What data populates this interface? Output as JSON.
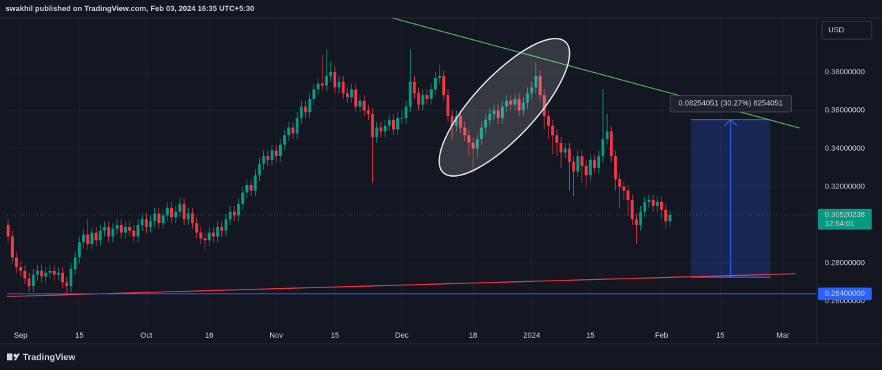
{
  "header": {
    "attribution": "swakhil published on TradingView.com, Feb 03, 2024 16:35 UTC+5:30",
    "currency": "USD",
    "brand": "TradingView"
  },
  "chart_data": {
    "type": "candlestick",
    "x": [
      -3,
      -2,
      -1,
      0,
      1,
      2,
      3,
      4,
      5,
      6,
      7,
      8,
      9,
      10,
      11,
      12,
      13,
      14,
      15,
      16,
      17,
      18,
      19,
      20,
      21,
      22,
      23,
      24,
      25,
      26,
      27,
      28,
      29,
      30,
      31,
      32,
      33,
      34,
      35,
      36,
      37,
      38,
      39,
      40,
      41,
      42,
      43,
      44,
      45,
      46,
      47,
      48,
      49,
      50,
      51,
      52,
      53,
      54,
      55,
      56,
      57,
      58,
      59,
      60,
      61,
      62,
      63,
      64,
      65,
      66,
      67,
      68,
      69,
      70,
      71,
      72,
      73,
      74,
      75,
      76,
      77,
      78,
      79,
      80,
      81,
      82,
      83,
      84,
      85,
      86,
      87,
      88,
      89,
      90,
      91,
      92,
      93,
      94,
      95,
      96,
      97,
      98,
      99,
      100,
      101,
      102,
      103,
      104,
      105,
      106,
      107,
      108,
      109,
      110,
      111,
      112,
      113,
      114,
      115,
      116,
      117,
      118,
      119,
      120,
      121,
      122,
      123,
      124,
      125,
      126,
      127,
      128,
      129,
      130,
      131,
      132,
      133,
      134,
      135,
      136,
      137,
      138,
      139,
      140,
      141,
      142,
      143,
      144,
      145,
      146,
      147,
      148,
      149,
      150,
      151,
      152,
      153,
      154,
      155
    ],
    "open": [
      0.3,
      0.294,
      0.283,
      0.278,
      0.276,
      0.272,
      0.268,
      0.274,
      0.276,
      0.273,
      0.275,
      0.276,
      0.274,
      0.275,
      0.27,
      0.268,
      0.277,
      0.283,
      0.291,
      0.295,
      0.29,
      0.296,
      0.292,
      0.297,
      0.299,
      0.294,
      0.298,
      0.3,
      0.296,
      0.299,
      0.297,
      0.294,
      0.3,
      0.303,
      0.299,
      0.302,
      0.306,
      0.301,
      0.305,
      0.309,
      0.304,
      0.307,
      0.311,
      0.303,
      0.306,
      0.301,
      0.296,
      0.293,
      0.292,
      0.296,
      0.294,
      0.299,
      0.297,
      0.303,
      0.307,
      0.305,
      0.311,
      0.317,
      0.321,
      0.318,
      0.326,
      0.332,
      0.336,
      0.334,
      0.339,
      0.336,
      0.342,
      0.347,
      0.351,
      0.348,
      0.356,
      0.362,
      0.359,
      0.366,
      0.371,
      0.374,
      0.373,
      0.378,
      0.38,
      0.372,
      0.375,
      0.369,
      0.367,
      0.371,
      0.362,
      0.365,
      0.36,
      0.358,
      0.346,
      0.351,
      0.349,
      0.352,
      0.355,
      0.35,
      0.356,
      0.356,
      0.362,
      0.375,
      0.369,
      0.363,
      0.368,
      0.366,
      0.371,
      0.377,
      0.378,
      0.368,
      0.357,
      0.352,
      0.357,
      0.351,
      0.347,
      0.343,
      0.34,
      0.345,
      0.351,
      0.355,
      0.358,
      0.36,
      0.356,
      0.362,
      0.365,
      0.363,
      0.366,
      0.36,
      0.364,
      0.369,
      0.372,
      0.378,
      0.368,
      0.357,
      0.352,
      0.347,
      0.343,
      0.338,
      0.34,
      0.333,
      0.328,
      0.336,
      0.331,
      0.326,
      0.334,
      0.33,
      0.336,
      0.345,
      0.349,
      0.336,
      0.324,
      0.32,
      0.318,
      0.313,
      0.303,
      0.3,
      0.307,
      0.312,
      0.313,
      0.31,
      0.312,
      0.308,
      0.302
    ],
    "high": [
      0.303,
      0.297,
      0.286,
      0.281,
      0.279,
      0.275,
      0.277,
      0.279,
      0.279,
      0.278,
      0.279,
      0.279,
      0.278,
      0.278,
      0.273,
      0.28,
      0.286,
      0.294,
      0.298,
      0.303,
      0.299,
      0.299,
      0.3,
      0.302,
      0.302,
      0.301,
      0.303,
      0.303,
      0.302,
      0.302,
      0.3,
      0.303,
      0.306,
      0.306,
      0.305,
      0.309,
      0.309,
      0.308,
      0.312,
      0.312,
      0.31,
      0.314,
      0.314,
      0.309,
      0.309,
      0.304,
      0.299,
      0.296,
      0.299,
      0.299,
      0.302,
      0.302,
      0.306,
      0.31,
      0.31,
      0.314,
      0.32,
      0.324,
      0.324,
      0.329,
      0.335,
      0.339,
      0.339,
      0.342,
      0.342,
      0.345,
      0.35,
      0.354,
      0.354,
      0.359,
      0.365,
      0.365,
      0.369,
      0.374,
      0.377,
      0.389,
      0.392,
      0.386,
      0.383,
      0.378,
      0.378,
      0.372,
      0.374,
      0.374,
      0.368,
      0.368,
      0.363,
      0.361,
      0.354,
      0.354,
      0.355,
      0.358,
      0.358,
      0.359,
      0.36,
      0.365,
      0.392,
      0.378,
      0.372,
      0.371,
      0.371,
      0.374,
      0.38,
      0.384,
      0.381,
      0.371,
      0.36,
      0.36,
      0.36,
      0.354,
      0.35,
      0.346,
      0.348,
      0.354,
      0.358,
      0.361,
      0.363,
      0.363,
      0.365,
      0.368,
      0.368,
      0.369,
      0.369,
      0.367,
      0.372,
      0.375,
      0.385,
      0.381,
      0.371,
      0.36,
      0.355,
      0.35,
      0.346,
      0.343,
      0.343,
      0.336,
      0.339,
      0.339,
      0.334,
      0.337,
      0.337,
      0.339,
      0.371,
      0.358,
      0.352,
      0.339,
      0.327,
      0.323,
      0.321,
      0.316,
      0.306,
      0.31,
      0.315,
      0.316,
      0.316,
      0.315,
      0.315,
      0.311,
      0.3075
    ],
    "low": [
      0.291,
      0.28,
      0.275,
      0.273,
      0.269,
      0.265,
      0.265,
      0.271,
      0.27,
      0.27,
      0.272,
      0.271,
      0.271,
      0.267,
      0.264,
      0.265,
      0.274,
      0.28,
      0.288,
      0.287,
      0.287,
      0.289,
      0.289,
      0.294,
      0.291,
      0.291,
      0.295,
      0.293,
      0.293,
      0.294,
      0.291,
      0.291,
      0.297,
      0.296,
      0.296,
      0.299,
      0.298,
      0.298,
      0.302,
      0.301,
      0.301,
      0.304,
      0.3,
      0.3,
      0.298,
      0.293,
      0.29,
      0.287,
      0.289,
      0.291,
      0.291,
      0.294,
      0.294,
      0.3,
      0.302,
      0.302,
      0.308,
      0.314,
      0.315,
      0.315,
      0.323,
      0.329,
      0.331,
      0.331,
      0.333,
      0.333,
      0.339,
      0.344,
      0.345,
      0.345,
      0.353,
      0.356,
      0.356,
      0.363,
      0.368,
      0.37,
      0.37,
      0.375,
      0.369,
      0.369,
      0.366,
      0.364,
      0.364,
      0.359,
      0.359,
      0.357,
      0.355,
      0.322,
      0.343,
      0.346,
      0.346,
      0.349,
      0.347,
      0.347,
      0.353,
      0.353,
      0.359,
      0.366,
      0.36,
      0.36,
      0.363,
      0.363,
      0.368,
      0.374,
      0.365,
      0.354,
      0.345,
      0.349,
      0.348,
      0.344,
      0.336,
      0.327,
      0.335,
      0.342,
      0.348,
      0.352,
      0.355,
      0.353,
      0.353,
      0.359,
      0.36,
      0.36,
      0.357,
      0.357,
      0.361,
      0.366,
      0.369,
      0.365,
      0.35,
      0.345,
      0.337,
      0.336,
      0.33,
      0.335,
      0.318,
      0.315,
      0.325,
      0.322,
      0.32,
      0.323,
      0.327,
      0.327,
      0.333,
      0.342,
      0.333,
      0.318,
      0.309,
      0.313,
      0.305,
      0.3,
      0.29,
      0.297,
      0.304,
      0.309,
      0.307,
      0.307,
      0.303,
      0.298,
      0.299
    ],
    "close": [
      0.294,
      0.283,
      0.278,
      0.276,
      0.272,
      0.268,
      0.274,
      0.276,
      0.273,
      0.275,
      0.276,
      0.274,
      0.275,
      0.27,
      0.268,
      0.277,
      0.283,
      0.291,
      0.295,
      0.29,
      0.296,
      0.292,
      0.297,
      0.299,
      0.294,
      0.298,
      0.3,
      0.296,
      0.299,
      0.297,
      0.294,
      0.3,
      0.303,
      0.299,
      0.302,
      0.306,
      0.301,
      0.305,
      0.309,
      0.304,
      0.307,
      0.311,
      0.303,
      0.306,
      0.301,
      0.296,
      0.293,
      0.292,
      0.296,
      0.294,
      0.299,
      0.297,
      0.303,
      0.307,
      0.305,
      0.311,
      0.317,
      0.321,
      0.318,
      0.326,
      0.332,
      0.336,
      0.334,
      0.339,
      0.336,
      0.342,
      0.347,
      0.351,
      0.348,
      0.356,
      0.362,
      0.359,
      0.366,
      0.371,
      0.374,
      0.373,
      0.378,
      0.38,
      0.372,
      0.375,
      0.369,
      0.367,
      0.371,
      0.362,
      0.365,
      0.36,
      0.358,
      0.346,
      0.351,
      0.349,
      0.352,
      0.355,
      0.35,
      0.356,
      0.356,
      0.362,
      0.375,
      0.369,
      0.363,
      0.368,
      0.366,
      0.371,
      0.377,
      0.378,
      0.368,
      0.357,
      0.352,
      0.357,
      0.351,
      0.347,
      0.343,
      0.34,
      0.345,
      0.351,
      0.355,
      0.358,
      0.36,
      0.356,
      0.362,
      0.365,
      0.363,
      0.366,
      0.36,
      0.364,
      0.369,
      0.372,
      0.378,
      0.368,
      0.357,
      0.352,
      0.347,
      0.343,
      0.338,
      0.34,
      0.333,
      0.328,
      0.336,
      0.331,
      0.326,
      0.334,
      0.33,
      0.336,
      0.345,
      0.349,
      0.336,
      0.324,
      0.32,
      0.318,
      0.313,
      0.303,
      0.3,
      0.307,
      0.312,
      0.313,
      0.31,
      0.312,
      0.308,
      0.302,
      0.30520238
    ],
    "up_color": "#089981",
    "down_color": "#f23645",
    "xlim": [
      -3.3,
      190
    ],
    "ylim": [
      0.2468,
      0.4084
    ],
    "xticks": [
      {
        "value": 0,
        "label": "Sep"
      },
      {
        "value": 14,
        "label": "15"
      },
      {
        "value": 30,
        "label": "Oct"
      },
      {
        "value": 45,
        "label": "16"
      },
      {
        "value": 61,
        "label": "Nov"
      },
      {
        "value": 75,
        "label": "15"
      },
      {
        "value": 91,
        "label": "Dec"
      },
      {
        "value": 108,
        "label": "18"
      },
      {
        "value": 122,
        "label": "2024"
      },
      {
        "value": 136,
        "label": "15"
      },
      {
        "value": 153,
        "label": "Feb"
      },
      {
        "value": 167,
        "label": "15"
      },
      {
        "value": 182,
        "label": "Mar"
      }
    ],
    "yticks": [
      {
        "value": 0.38,
        "label": "0.38000000"
      },
      {
        "value": 0.36,
        "label": "0.36000000"
      },
      {
        "value": 0.34,
        "label": "0.34000000"
      },
      {
        "value": 0.32,
        "label": "0.32000000"
      },
      {
        "value": 0.28,
        "label": "0.28000000"
      },
      {
        "value": 0.26,
        "label": "0.26000000"
      }
    ],
    "grid": true,
    "last_price": 0.30520238,
    "countdown": "12:54:01",
    "horizontal_line": {
      "value": 0.264,
      "label": "0.26400000",
      "color": "#2962ff"
    },
    "trendlines": [
      {
        "color": "#4caf50",
        "x": [
          88.8,
          185.9
        ],
        "y": [
          0.4083,
          0.3508
        ]
      },
      {
        "color": "#f23645",
        "x": [
          -3.3,
          185
        ],
        "y": [
          0.2626,
          0.2745
        ]
      }
    ],
    "measure": {
      "x": [
        160,
        179
      ],
      "from": 0.27266,
      "to": 0.3552,
      "label": "0.08254051 (30.27%) 8254051",
      "color": "#2962ff"
    }
  }
}
